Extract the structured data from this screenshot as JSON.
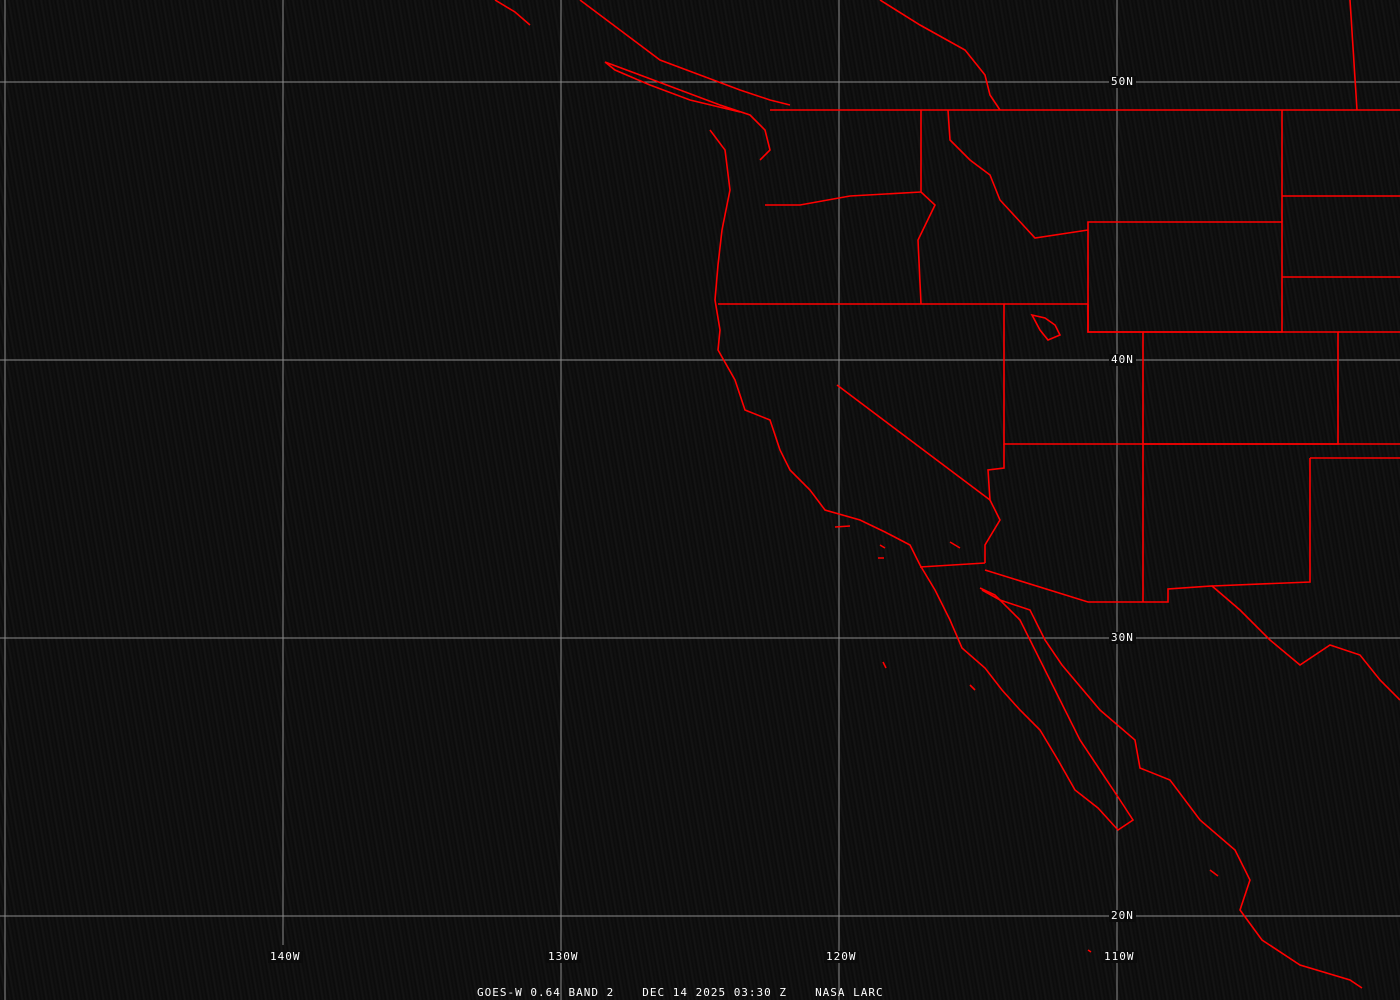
{
  "map": {
    "grid_color": "#8a8a8a",
    "boundary_color": "#ff0000",
    "lat_labels": [
      "50N",
      "40N",
      "30N",
      "20N"
    ],
    "lon_labels": [
      "140W",
      "130W",
      "120W",
      "110W"
    ]
  },
  "caption": {
    "satellite": "GOES-W 0.64 BAND 2",
    "datetime": "DEC 14 2025 03:30 Z",
    "source": "NASA LARC"
  }
}
